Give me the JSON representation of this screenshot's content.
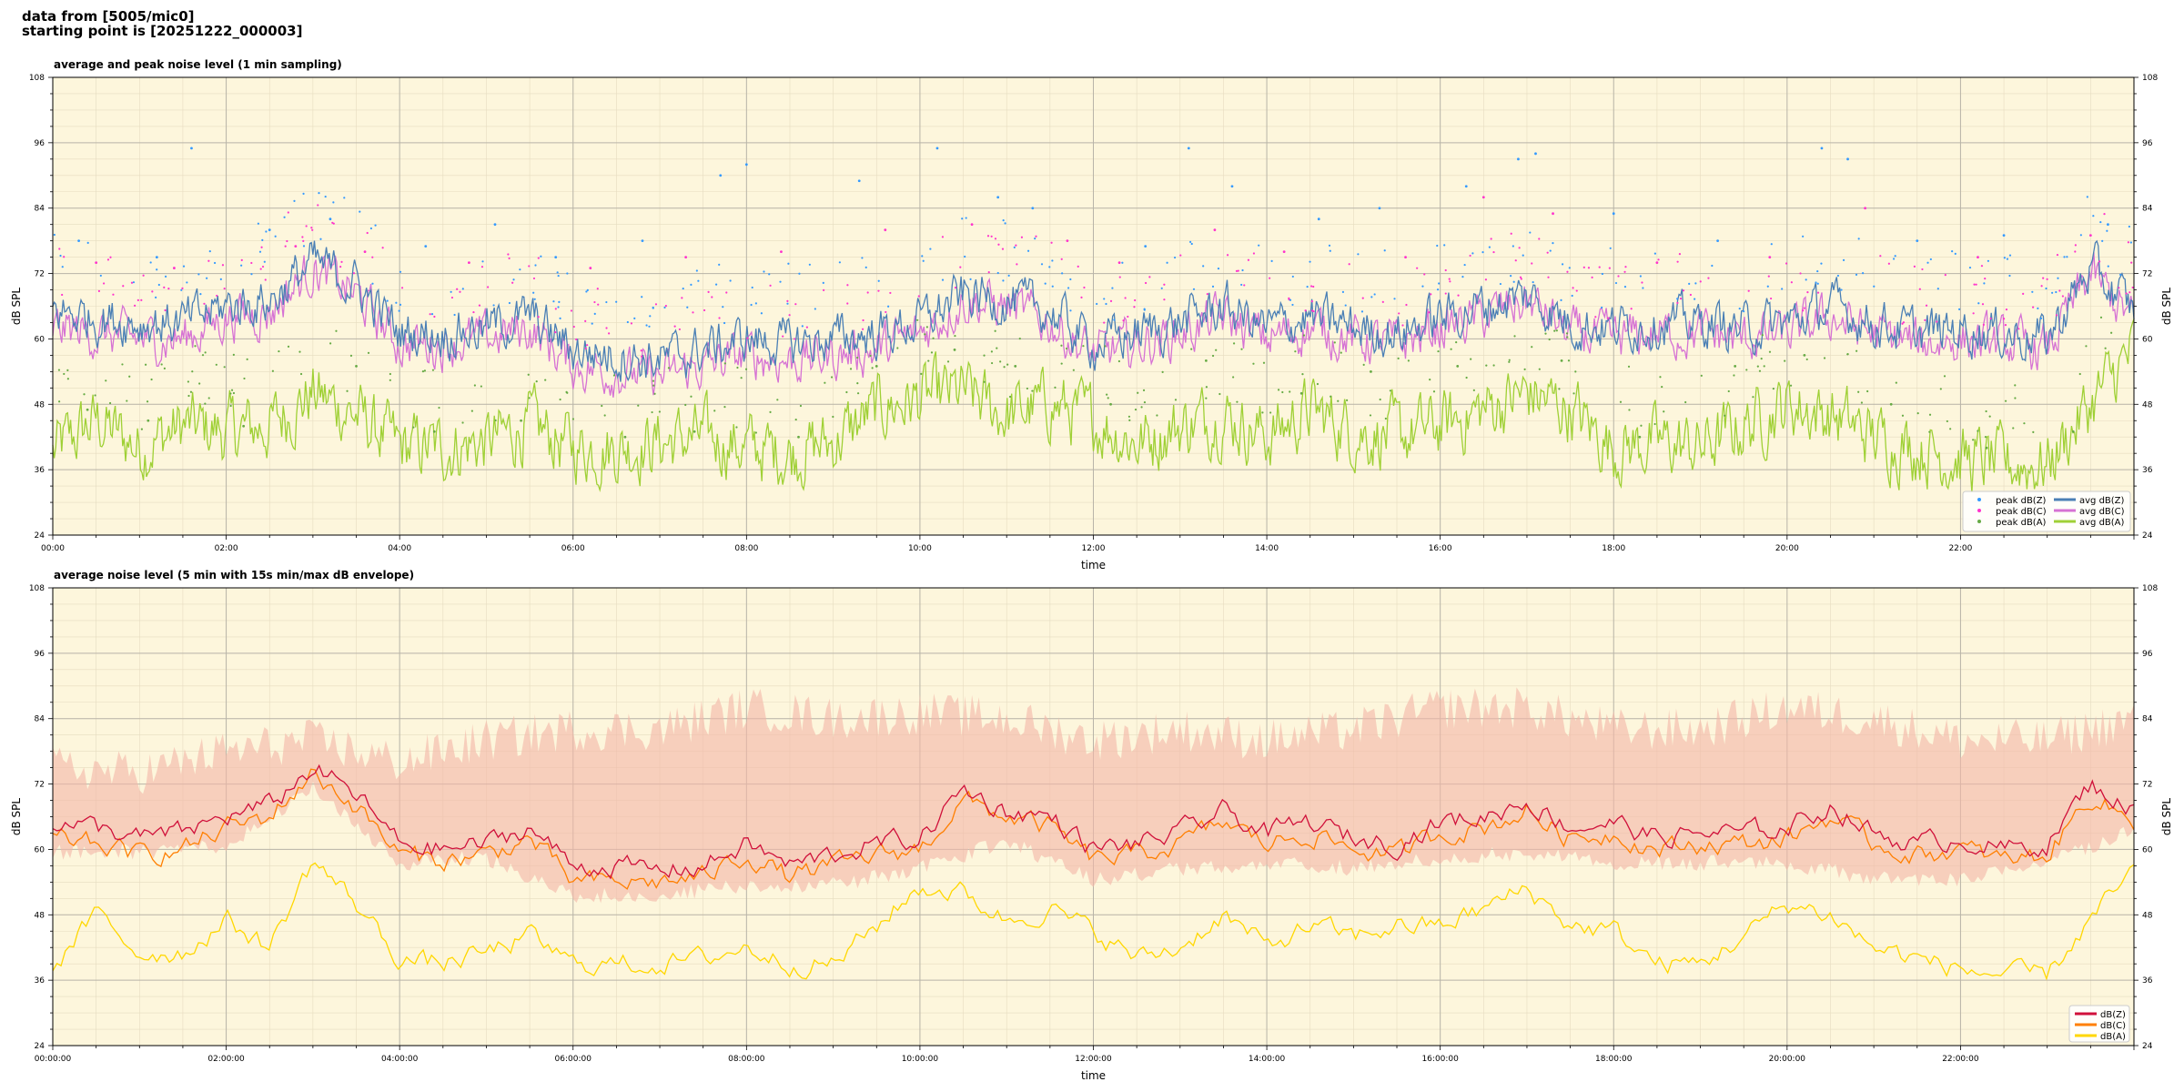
{
  "header": {
    "line1": "data from [5005/mic0]",
    "line2": "starting point is [20251222_000003]"
  },
  "colors": {
    "plot_bg": "#fdf6dc",
    "avg_z": "#4a7fb5",
    "avg_c": "#d672d4",
    "avg_a": "#9fd035",
    "peak_z": "#3399ff",
    "peak_c": "#ff33cc",
    "peak_a": "#66aa44",
    "bottom_z": "#d0103a",
    "bottom_c": "#ff7f00",
    "bottom_a": "#ffd700",
    "envelope": "#f4b6a6"
  },
  "chart_data": [
    {
      "type": "line",
      "title": "average and peak noise level (1 min sampling)",
      "xlabel": "time",
      "ylabel": "dB SPL",
      "ylim": [
        24,
        108
      ],
      "xlim_hours": [
        0,
        24
      ],
      "yticks": [
        24,
        36,
        48,
        60,
        72,
        84,
        96,
        108
      ],
      "xticks": [
        "00:00",
        "02:00",
        "04:00",
        "06:00",
        "08:00",
        "10:00",
        "12:00",
        "14:00",
        "16:00",
        "18:00",
        "20:00",
        "22:00"
      ],
      "grid": true,
      "legend_position": "lower-right",
      "legend": [
        "peak dB(Z)",
        "peak dB(C)",
        "peak dB(A)",
        "avg dB(Z)",
        "avg dB(C)",
        "avg dB(A)"
      ],
      "series": [
        {
          "name": "avg dB(Z)",
          "x_hours": [
            0,
            0.5,
            1,
            1.5,
            2,
            2.5,
            3,
            3.5,
            4,
            4.5,
            5,
            5.5,
            6,
            6.5,
            7,
            7.5,
            8,
            8.5,
            9,
            9.5,
            10,
            10.5,
            11,
            11.5,
            12,
            12.5,
            13,
            13.5,
            14,
            14.5,
            15,
            15.5,
            16,
            16.5,
            17,
            17.5,
            18,
            18.5,
            19,
            19.5,
            20,
            20.5,
            21,
            21.5,
            22,
            22.5,
            23,
            23.5,
            24
          ],
          "values": [
            65,
            64,
            63,
            63,
            66,
            67,
            74,
            70,
            61,
            61,
            62,
            64,
            58,
            57,
            56,
            58,
            60,
            59,
            60,
            61,
            63,
            68,
            67,
            65,
            59,
            61,
            63,
            66,
            62,
            64,
            62,
            61,
            64,
            66,
            68,
            63,
            62,
            63,
            63,
            62,
            63,
            66,
            63,
            61,
            62,
            61,
            60,
            73,
            65
          ]
        },
        {
          "name": "avg dB(C)",
          "x_hours": [
            0,
            0.5,
            1,
            1.5,
            2,
            2.5,
            3,
            3.5,
            4,
            4.5,
            5,
            5.5,
            6,
            6.5,
            7,
            7.5,
            8,
            8.5,
            9,
            9.5,
            10,
            10.5,
            11,
            11.5,
            12,
            12.5,
            13,
            13.5,
            14,
            14.5,
            15,
            15.5,
            16,
            16.5,
            17,
            17.5,
            18,
            18.5,
            19,
            19.5,
            20,
            20.5,
            21,
            21.5,
            22,
            22.5,
            23,
            23.5,
            24
          ],
          "values": [
            62,
            61,
            60,
            60,
            64,
            65,
            73,
            68,
            59,
            59,
            60,
            62,
            55,
            54,
            53,
            55,
            57,
            56,
            57,
            58,
            61,
            67,
            66,
            63,
            57,
            59,
            61,
            64,
            60,
            62,
            60,
            59,
            62,
            64,
            67,
            61,
            60,
            61,
            61,
            60,
            61,
            64,
            61,
            59,
            60,
            59,
            58,
            72,
            63
          ]
        },
        {
          "name": "avg dB(A)",
          "x_hours": [
            0,
            0.5,
            1,
            1.5,
            2,
            2.5,
            3,
            3.5,
            4,
            4.5,
            5,
            5.5,
            6,
            6.5,
            7,
            7.5,
            8,
            8.5,
            9,
            9.5,
            10,
            10.5,
            11,
            11.5,
            12,
            12.5,
            13,
            13.5,
            14,
            14.5,
            15,
            15.5,
            16,
            16.5,
            17,
            17.5,
            18,
            18.5,
            19,
            19.5,
            20,
            20.5,
            21,
            21.5,
            22,
            22.5,
            23,
            23.5,
            24
          ],
          "values": [
            39,
            45,
            40,
            44,
            43,
            44,
            50,
            46,
            40,
            40,
            41,
            44,
            40,
            40,
            41,
            42,
            40,
            39,
            41,
            47,
            49,
            50,
            46,
            48,
            45,
            41,
            44,
            46,
            42,
            47,
            43,
            42,
            44,
            47,
            50,
            47,
            40,
            41,
            40,
            44,
            48,
            46,
            42,
            40,
            38,
            37,
            37,
            48,
            58
          ]
        },
        {
          "name": "peak dB(Z)",
          "x_hours": [
            0.3,
            1.2,
            1.6,
            2.5,
            3.2,
            4.3,
            5.1,
            5.8,
            6.8,
            7.7,
            8.0,
            9.3,
            10.2,
            10.9,
            11.3,
            12.6,
            13.1,
            13.6,
            14.6,
            15.3,
            16.3,
            16.9,
            17.1,
            18.0,
            19.2,
            20.4,
            20.7,
            21.5,
            22.5,
            23.7
          ],
          "values": [
            78,
            75,
            95,
            80,
            82,
            77,
            81,
            75,
            78,
            90,
            92,
            89,
            95,
            86,
            84,
            77,
            95,
            88,
            82,
            84,
            88,
            93,
            94,
            83,
            78,
            95,
            93,
            78,
            79,
            81
          ]
        },
        {
          "name": "peak dB(C)",
          "x_hours": [
            0.5,
            1.4,
            2.8,
            3.6,
            4.8,
            6.2,
            7.3,
            8.4,
            9.6,
            10.6,
            11.7,
            12.3,
            13.4,
            14.2,
            15.6,
            16.5,
            17.3,
            18.5,
            19.8,
            20.9,
            22.2,
            23.5
          ],
          "values": [
            74,
            73,
            77,
            76,
            74,
            73,
            75,
            76,
            80,
            81,
            78,
            74,
            80,
            76,
            75,
            86,
            83,
            74,
            75,
            84,
            75,
            79
          ]
        },
        {
          "name": "peak dB(A)",
          "x_hours": [
            0.4,
            1.1,
            2.2,
            3.5,
            4.4,
            5.4,
            6.6,
            7.4,
            8.6,
            9.5,
            10.4,
            11.1,
            12.2,
            13.3,
            14.4,
            15.2,
            16.2,
            17.4,
            18.3,
            19.4,
            20.2,
            21.2,
            22.3,
            23.3
          ],
          "values": [
            47,
            45,
            44,
            55,
            43,
            45,
            42,
            43,
            42,
            55,
            58,
            55,
            48,
            56,
            50,
            54,
            55,
            56,
            42,
            55,
            57,
            48,
            40,
            43
          ]
        }
      ]
    },
    {
      "type": "line",
      "title": "average noise level (5 min with 15s min/max dB envelope)",
      "xlabel": "time",
      "ylabel": "dB SPL",
      "ylim": [
        24,
        108
      ],
      "xlim_hours": [
        0,
        24
      ],
      "yticks": [
        24,
        36,
        48,
        60,
        72,
        84,
        96,
        108
      ],
      "xticks": [
        "00:00:00",
        "02:00:00",
        "04:00:00",
        "06:00:00",
        "08:00:00",
        "10:00:00",
        "12:00:00",
        "14:00:00",
        "16:00:00",
        "18:00:00",
        "20:00:00",
        "22:00:00"
      ],
      "grid": true,
      "legend_position": "lower-right",
      "legend": [
        "dB(Z)",
        "dB(C)",
        "dB(A)"
      ],
      "envelope": {
        "x_hours": [
          0,
          1,
          2,
          3,
          4,
          5,
          6,
          7,
          8,
          9,
          10,
          11,
          12,
          13,
          14,
          15,
          16,
          17,
          18,
          19,
          20,
          21,
          22,
          23,
          24
        ],
        "min": [
          58,
          58,
          59,
          70,
          56,
          57,
          50,
          50,
          52,
          52,
          55,
          60,
          53,
          55,
          56,
          55,
          57,
          58,
          56,
          56,
          56,
          53,
          53,
          56,
          62
        ],
        "max": [
          75,
          74,
          78,
          80,
          76,
          80,
          82,
          82,
          86,
          84,
          85,
          84,
          80,
          82,
          80,
          82,
          86,
          86,
          82,
          82,
          86,
          84,
          80,
          80,
          84
        ]
      },
      "series": [
        {
          "name": "dB(Z)",
          "x_hours": [
            0,
            0.5,
            1,
            1.5,
            2,
            2.5,
            3,
            3.5,
            4,
            4.5,
            5,
            5.5,
            6,
            6.5,
            7,
            7.5,
            8,
            8.5,
            9,
            9.5,
            10,
            10.5,
            11,
            11.5,
            12,
            12.5,
            13,
            13.5,
            14,
            14.5,
            15,
            15.5,
            16,
            16.5,
            17,
            17.5,
            18,
            18.5,
            19,
            19.5,
            20,
            20.5,
            21,
            21.5,
            22,
            22.5,
            23,
            23.5,
            24
          ],
          "values": [
            65,
            64,
            62,
            63,
            66,
            68,
            75,
            70,
            61,
            60,
            61,
            64,
            57,
            57,
            56,
            57,
            61,
            57,
            59,
            61,
            62,
            71,
            67,
            66,
            60,
            61,
            63,
            67,
            63,
            65,
            62,
            61,
            65,
            66,
            69,
            64,
            65,
            62,
            63,
            63,
            64,
            68,
            63,
            61,
            62,
            60,
            61,
            72,
            67
          ]
        },
        {
          "name": "dB(C)",
          "x_hours": [
            0,
            0.5,
            1,
            1.5,
            2,
            2.5,
            3,
            3.5,
            4,
            4.5,
            5,
            5.5,
            6,
            6.5,
            7,
            7.5,
            8,
            8.5,
            9,
            9.5,
            10,
            10.5,
            11,
            11.5,
            12,
            12.5,
            13,
            13.5,
            14,
            14.5,
            15,
            15.5,
            16,
            16.5,
            17,
            17.5,
            18,
            18.5,
            19,
            19.5,
            20,
            20.5,
            21,
            21.5,
            22,
            22.5,
            23,
            23.5,
            24
          ],
          "values": [
            62,
            61,
            59,
            60,
            64,
            66,
            74,
            68,
            59,
            58,
            59,
            62,
            54,
            54,
            54,
            55,
            59,
            55,
            57,
            59,
            60,
            69,
            66,
            64,
            58,
            59,
            61,
            65,
            61,
            63,
            60,
            59,
            63,
            64,
            67,
            62,
            63,
            60,
            61,
            61,
            62,
            66,
            61,
            59,
            60,
            58,
            59,
            70,
            65
          ]
        },
        {
          "name": "dB(A)",
          "x_hours": [
            0,
            0.5,
            1,
            1.5,
            2,
            2.5,
            3,
            3.5,
            4,
            4.5,
            5,
            5.5,
            6,
            6.5,
            7,
            7.5,
            8,
            8.5,
            9,
            9.5,
            10,
            10.5,
            11,
            11.5,
            12,
            12.5,
            13,
            13.5,
            14,
            14.5,
            15,
            15.5,
            16,
            16.5,
            17,
            17.5,
            18,
            18.5,
            19,
            19.5,
            20,
            20.5,
            21,
            21.5,
            22,
            22.5,
            23,
            23.5,
            24
          ],
          "values": [
            38,
            48,
            41,
            41,
            47,
            42,
            58,
            50,
            40,
            39,
            41,
            44,
            39,
            39,
            39,
            40,
            42,
            39,
            39,
            46,
            53,
            52,
            47,
            49,
            45,
            40,
            42,
            48,
            42,
            46,
            44,
            46,
            46,
            49,
            53,
            46,
            45,
            39,
            39,
            44,
            50,
            48,
            42,
            40,
            38,
            37,
            37,
            47,
            56
          ]
        }
      ]
    }
  ]
}
